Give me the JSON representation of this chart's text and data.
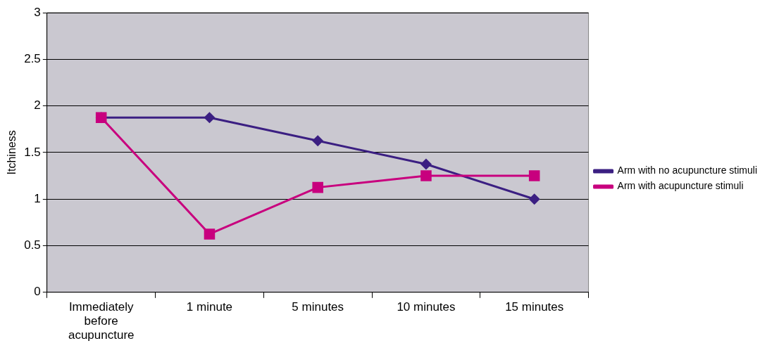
{
  "chart_data": {
    "type": "line",
    "ylabel": "Itchiness",
    "categories": [
      "Immediately before acupuncture",
      "1 minute",
      "5 minutes",
      "10 minutes",
      "15 minutes"
    ],
    "series": [
      {
        "name": "Arm with no acupuncture stimuli",
        "color": "#3b1f82",
        "marker": "diamond",
        "values": [
          1.875,
          1.875,
          1.625,
          1.375,
          1.0
        ]
      },
      {
        "name": "Arm with acupuncture stimuli",
        "color": "#c8007e",
        "marker": "square",
        "values": [
          1.875,
          0.625,
          1.125,
          1.25,
          1.25
        ]
      }
    ],
    "ylim": [
      0,
      3
    ],
    "yticks": [
      0,
      0.5,
      1,
      1.5,
      2,
      2.5,
      3
    ],
    "grid": "y",
    "legend": "right",
    "line_style": "solid"
  }
}
